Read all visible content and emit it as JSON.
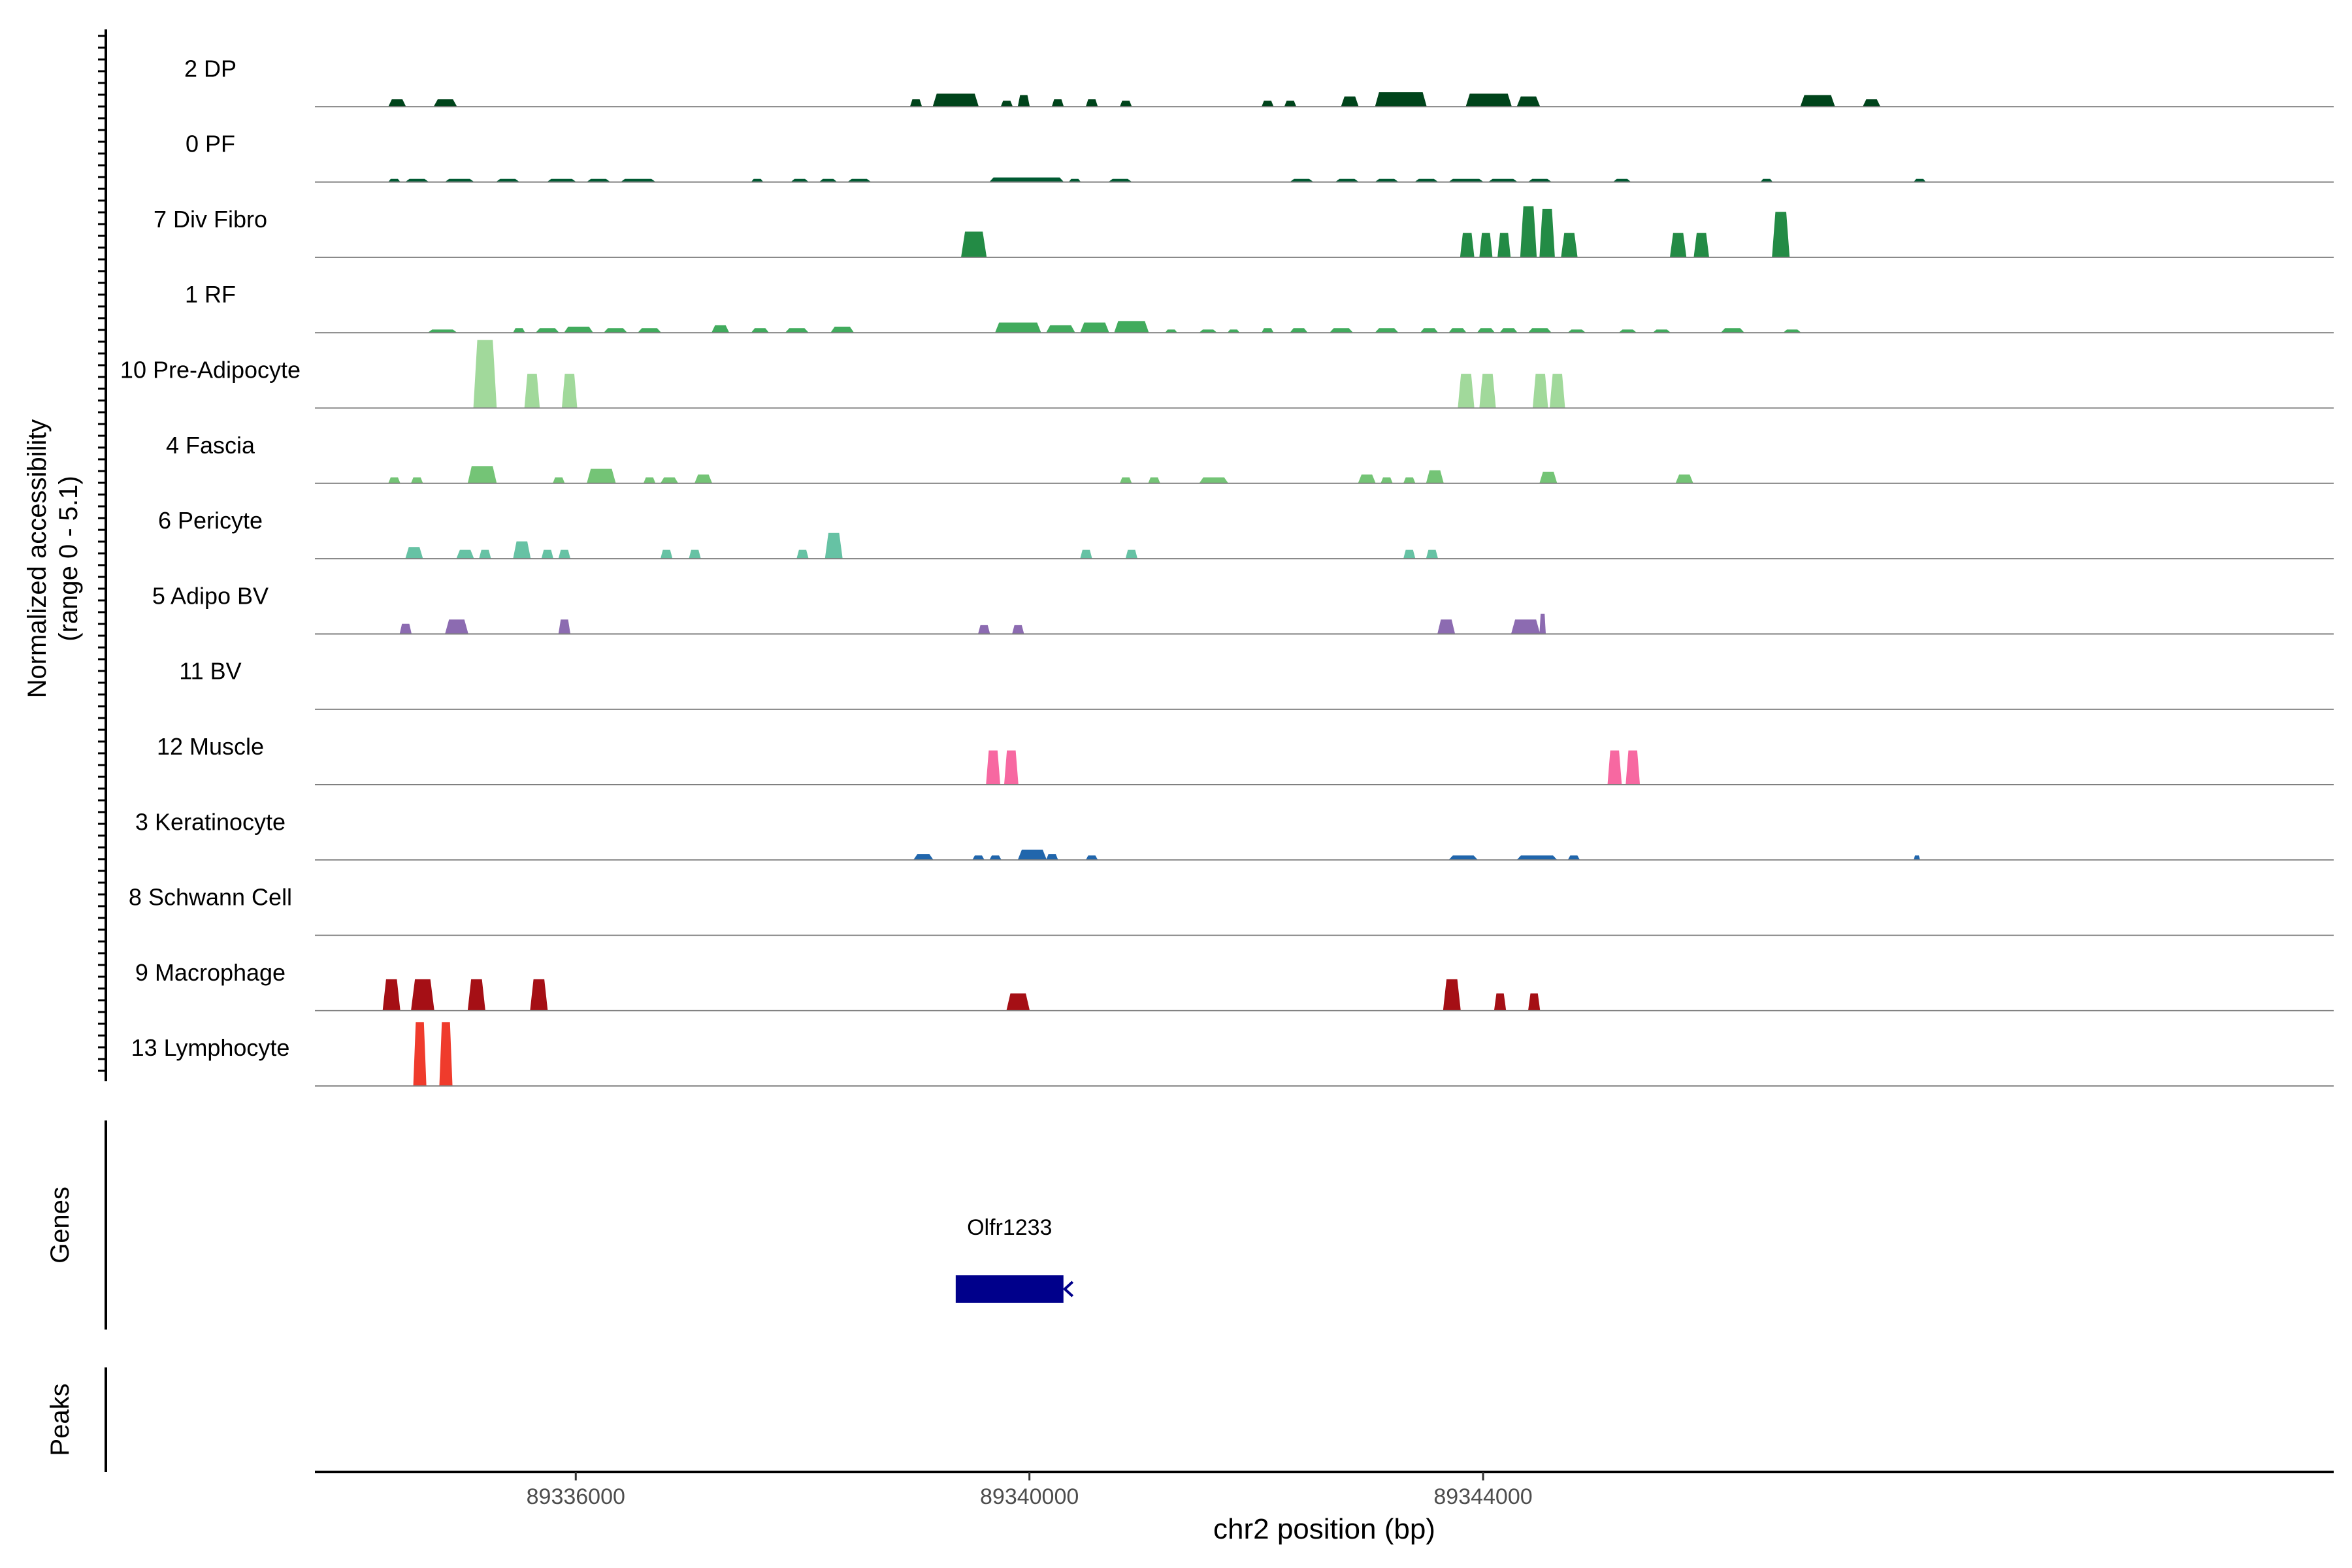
{
  "chart_data": {
    "type": "area",
    "title": "",
    "y_axis_label_line1": "Normalized accessibility",
    "y_axis_label_line2": "(range 0 - 5.1)",
    "y_range": [
      0,
      5.1
    ],
    "x_axis_label": "chr2 position (bp)",
    "x_range": [
      89333700,
      89351500
    ],
    "x_ticks": [
      89336000,
      89340000,
      89344000
    ],
    "x_tick_labels": [
      "89336000",
      "89340000",
      "89344000"
    ],
    "genes_label": "Genes",
    "peaks_label": "Peaks",
    "genes": [
      {
        "name": "Olfr1233",
        "start": 89339350,
        "end": 89340300,
        "strand": "-",
        "color": "#00008b"
      }
    ],
    "tracks": [
      {
        "name": "2 DP",
        "color": "#00441b",
        "peaks": [
          [
            89334350,
            89334500,
            0.5
          ],
          [
            89334750,
            89334950,
            0.5
          ],
          [
            89338950,
            89339050,
            0.5
          ],
          [
            89339150,
            89339550,
            0.9
          ],
          [
            89339750,
            89339850,
            0.4
          ],
          [
            89339900,
            89340000,
            0.8
          ],
          [
            89340200,
            89340300,
            0.5
          ],
          [
            89340500,
            89340600,
            0.5
          ],
          [
            89340800,
            89340900,
            0.4
          ],
          [
            89342050,
            89342150,
            0.4
          ],
          [
            89342250,
            89342350,
            0.4
          ],
          [
            89342750,
            89342900,
            0.7
          ],
          [
            89343050,
            89343500,
            1.0
          ],
          [
            89343850,
            89344250,
            0.9
          ],
          [
            89344300,
            89344500,
            0.7
          ],
          [
            89346800,
            89347100,
            0.8
          ],
          [
            89347350,
            89347500,
            0.5
          ]
        ]
      },
      {
        "name": "0 PF",
        "color": "#005a32",
        "peaks": [
          [
            89334350,
            89334450,
            0.2
          ],
          [
            89334500,
            89334700,
            0.2
          ],
          [
            89334850,
            89335100,
            0.2
          ],
          [
            89335300,
            89335500,
            0.2
          ],
          [
            89335750,
            89336000,
            0.2
          ],
          [
            89336100,
            89336300,
            0.2
          ],
          [
            89336400,
            89336700,
            0.2
          ],
          [
            89337550,
            89337650,
            0.2
          ],
          [
            89337900,
            89338050,
            0.2
          ],
          [
            89338150,
            89338300,
            0.2
          ],
          [
            89338400,
            89338600,
            0.2
          ],
          [
            89339650,
            89340300,
            0.3
          ],
          [
            89340350,
            89340450,
            0.2
          ],
          [
            89340700,
            89340900,
            0.2
          ],
          [
            89342300,
            89342500,
            0.2
          ],
          [
            89342700,
            89342900,
            0.2
          ],
          [
            89343050,
            89343250,
            0.2
          ],
          [
            89343400,
            89343600,
            0.2
          ],
          [
            89343700,
            89344000,
            0.2
          ],
          [
            89344050,
            89344300,
            0.2
          ],
          [
            89344400,
            89344600,
            0.2
          ],
          [
            89345150,
            89345300,
            0.2
          ],
          [
            89346450,
            89346550,
            0.2
          ],
          [
            89347800,
            89347900,
            0.2
          ]
        ]
      },
      {
        "name": "7 Div Fibro",
        "color": "#238b45",
        "peaks": [
          [
            89339400,
            89339620,
            1.8
          ],
          [
            89343800,
            89343920,
            1.7
          ],
          [
            89343970,
            89344080,
            1.7
          ],
          [
            89344130,
            89344240,
            1.7
          ],
          [
            89344330,
            89344470,
            3.6
          ],
          [
            89344500,
            89344630,
            3.4
          ],
          [
            89344690,
            89344830,
            1.7
          ],
          [
            89345650,
            89345790,
            1.7
          ],
          [
            89345860,
            89345990,
            1.7
          ],
          [
            89346550,
            89346700,
            3.2
          ]
        ]
      },
      {
        "name": "1 RF",
        "color": "#41ab5d",
        "peaks": [
          [
            89334700,
            89334950,
            0.2
          ],
          [
            89335450,
            89335550,
            0.3
          ],
          [
            89335650,
            89335850,
            0.3
          ],
          [
            89335900,
            89336150,
            0.4
          ],
          [
            89336250,
            89336450,
            0.3
          ],
          [
            89336550,
            89336750,
            0.3
          ],
          [
            89337200,
            89337350,
            0.5
          ],
          [
            89337550,
            89337700,
            0.3
          ],
          [
            89337850,
            89338050,
            0.3
          ],
          [
            89338250,
            89338450,
            0.4
          ],
          [
            89339700,
            89340100,
            0.7
          ],
          [
            89340150,
            89340400,
            0.5
          ],
          [
            89340450,
            89340700,
            0.7
          ],
          [
            89340750,
            89341050,
            0.8
          ],
          [
            89341200,
            89341300,
            0.2
          ],
          [
            89341500,
            89341650,
            0.2
          ],
          [
            89341750,
            89341850,
            0.2
          ],
          [
            89342050,
            89342150,
            0.3
          ],
          [
            89342300,
            89342450,
            0.3
          ],
          [
            89342650,
            89342850,
            0.3
          ],
          [
            89343050,
            89343250,
            0.3
          ],
          [
            89343450,
            89343600,
            0.3
          ],
          [
            89343700,
            89343850,
            0.3
          ],
          [
            89343950,
            89344100,
            0.3
          ],
          [
            89344150,
            89344300,
            0.3
          ],
          [
            89344400,
            89344600,
            0.3
          ],
          [
            89344750,
            89344900,
            0.2
          ],
          [
            89345200,
            89345350,
            0.2
          ],
          [
            89345500,
            89345650,
            0.2
          ],
          [
            89346100,
            89346300,
            0.3
          ],
          [
            89346650,
            89346800,
            0.2
          ]
        ]
      },
      {
        "name": "10 Pre-Adipocyte",
        "color": "#a1d99b",
        "peaks": [
          [
            89335100,
            89335300,
            4.8
          ],
          [
            89335550,
            89335680,
            2.4
          ],
          [
            89335880,
            89336010,
            2.4
          ],
          [
            89343780,
            89343920,
            2.4
          ],
          [
            89343970,
            89344110,
            2.4
          ],
          [
            89344440,
            89344570,
            2.4
          ],
          [
            89344590,
            89344720,
            2.4
          ]
        ]
      },
      {
        "name": "4 Fascia",
        "color": "#74c476",
        "peaks": [
          [
            89334350,
            89334450,
            0.4
          ],
          [
            89334550,
            89334650,
            0.4
          ],
          [
            89335050,
            89335300,
            1.2
          ],
          [
            89335800,
            89335900,
            0.4
          ],
          [
            89336100,
            89336350,
            1.0
          ],
          [
            89336600,
            89336700,
            0.4
          ],
          [
            89336750,
            89336900,
            0.4
          ],
          [
            89337050,
            89337200,
            0.6
          ],
          [
            89340800,
            89340900,
            0.4
          ],
          [
            89341050,
            89341150,
            0.4
          ],
          [
            89341500,
            89341750,
            0.4
          ],
          [
            89342900,
            89343050,
            0.6
          ],
          [
            89343100,
            89343200,
            0.4
          ],
          [
            89343300,
            89343400,
            0.4
          ],
          [
            89343500,
            89343650,
            0.9
          ],
          [
            89344500,
            89344650,
            0.8
          ],
          [
            89345700,
            89345850,
            0.6
          ]
        ]
      },
      {
        "name": "6 Pericyte",
        "color": "#66c2a4",
        "peaks": [
          [
            89334500,
            89334650,
            0.8
          ],
          [
            89334950,
            89335100,
            0.6
          ],
          [
            89335150,
            89335250,
            0.6
          ],
          [
            89335450,
            89335600,
            1.2
          ],
          [
            89335700,
            89335800,
            0.6
          ],
          [
            89335850,
            89335950,
            0.6
          ],
          [
            89336750,
            89336850,
            0.6
          ],
          [
            89337000,
            89337100,
            0.6
          ],
          [
            89337950,
            89338050,
            0.6
          ],
          [
            89338200,
            89338350,
            1.8
          ],
          [
            89340450,
            89340550,
            0.6
          ],
          [
            89340850,
            89340950,
            0.6
          ],
          [
            89343300,
            89343400,
            0.6
          ],
          [
            89343500,
            89343600,
            0.6
          ]
        ]
      },
      {
        "name": "5 Adipo BV",
        "color": "#8c6bb1",
        "peaks": [
          [
            89334450,
            89334550,
            0.7
          ],
          [
            89334850,
            89335050,
            1.0
          ],
          [
            89335850,
            89335950,
            1.0
          ],
          [
            89339550,
            89339650,
            0.6
          ],
          [
            89339850,
            89339950,
            0.6
          ],
          [
            89343600,
            89343750,
            1.0
          ],
          [
            89344250,
            89344500,
            1.0
          ],
          [
            89344500,
            89344550,
            1.4
          ]
        ]
      },
      {
        "name": "11 BV",
        "color": "#6a51a3",
        "peaks": []
      },
      {
        "name": "12 Muscle",
        "color": "#f768a1",
        "peaks": [
          [
            89339620,
            89339740,
            2.4
          ],
          [
            89339780,
            89339900,
            2.4
          ],
          [
            89345100,
            89345220,
            2.4
          ],
          [
            89345260,
            89345380,
            2.4
          ]
        ]
      },
      {
        "name": "3 Keratinocyte",
        "color": "#2166ac",
        "peaks": [
          [
            89338980,
            89339150,
            0.4
          ],
          [
            89339500,
            89339600,
            0.3
          ],
          [
            89339650,
            89339750,
            0.3
          ],
          [
            89339900,
            89340150,
            0.7
          ],
          [
            89340150,
            89340250,
            0.4
          ],
          [
            89340500,
            89340600,
            0.3
          ],
          [
            89343700,
            89343950,
            0.3
          ],
          [
            89344300,
            89344650,
            0.3
          ],
          [
            89344750,
            89344850,
            0.3
          ],
          [
            89347800,
            89347850,
            0.3
          ]
        ]
      },
      {
        "name": "8 Schwann Cell",
        "color": "#4292c6",
        "peaks": []
      },
      {
        "name": "9 Macrophage",
        "color": "#a50f15",
        "peaks": [
          [
            89334300,
            89334450,
            2.2
          ],
          [
            89334550,
            89334750,
            2.2
          ],
          [
            89335050,
            89335200,
            2.2
          ],
          [
            89335600,
            89335750,
            2.2
          ],
          [
            89339800,
            89340000,
            1.2
          ],
          [
            89343650,
            89343800,
            2.2
          ],
          [
            89344100,
            89344200,
            1.2
          ],
          [
            89344400,
            89344500,
            1.2
          ]
        ]
      },
      {
        "name": "13 Lymphocyte",
        "color": "#ef3b2c",
        "peaks": [
          [
            89334570,
            89334680,
            4.5
          ],
          [
            89334800,
            89334910,
            4.5
          ]
        ]
      }
    ]
  }
}
